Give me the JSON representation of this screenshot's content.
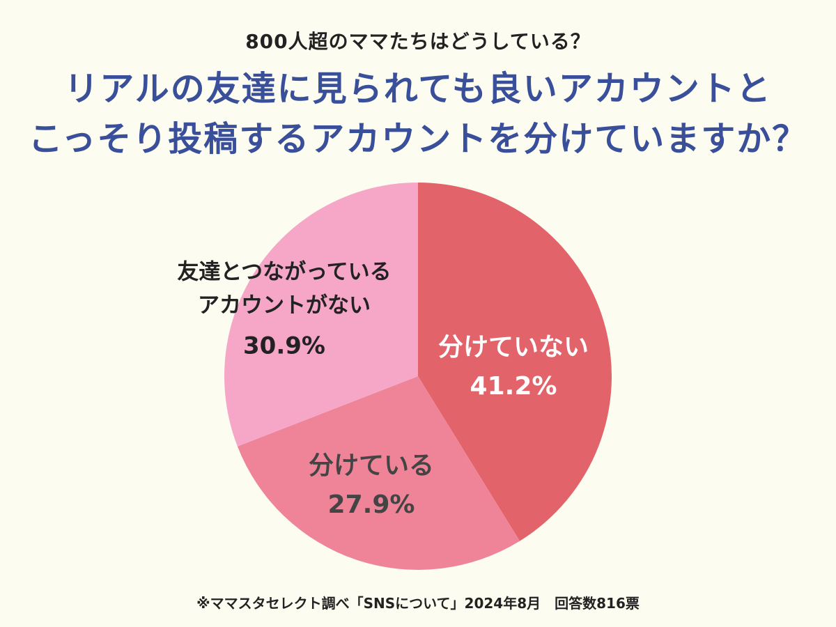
{
  "header": {
    "subtitle": "800人超のママたちはどうしている？",
    "title_line1": "リアルの友達に見られても良いアカウントと",
    "title_line2": "こっそり投稿するアカウントを分けていますか？"
  },
  "chart_data": {
    "type": "pie",
    "start_angle_deg": 0,
    "direction": "clockwise",
    "slices": [
      {
        "label_lines": [
          "分けていない"
        ],
        "value": 41.2,
        "value_label": "41.2%",
        "color": "#e2646a",
        "text_color": "#ffffff"
      },
      {
        "label_lines": [
          "分けている"
        ],
        "value": 27.9,
        "value_label": "27.9%",
        "color": "#ef8499",
        "text_color": "#444444"
      },
      {
        "label_lines": [
          "友達とつながっている",
          "アカウントがない"
        ],
        "value": 30.9,
        "value_label": "30.9%",
        "color": "#f6a7c7",
        "text_color": "#222222"
      }
    ]
  },
  "footer": {
    "note": "※ママスタセレクト調べ「SNSについて」2024年8月　回答数816票"
  }
}
